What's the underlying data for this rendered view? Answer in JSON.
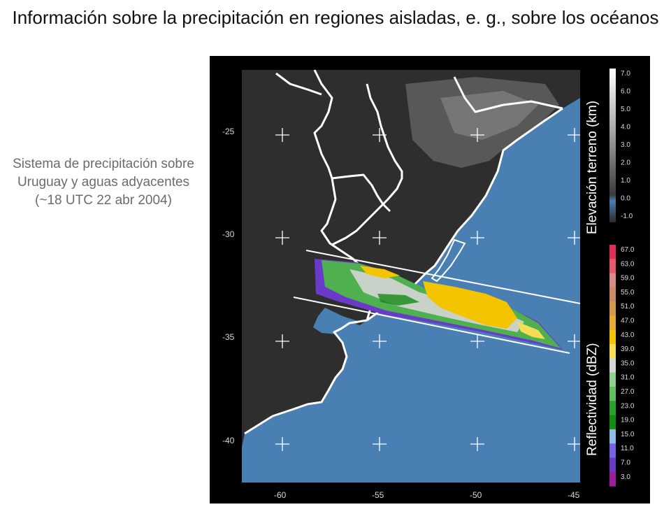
{
  "title": "Información sobre la precipitación en regiones aisladas, e. g., sobre los océanos",
  "side_caption": "Sistema de precipitación sobre Uruguay y aguas adyacentes (~18 UTC 22 abr 2004)",
  "map": {
    "lon_ticks": [
      "-60",
      "-55",
      "-50",
      "-45"
    ],
    "lat_ticks": [
      "-25",
      "-30",
      "-35",
      "-40"
    ],
    "ocean_color": "#4a7fb4",
    "land_color": "#2e2e2e",
    "border_color": "#ffffff"
  },
  "terrain_colorbar": {
    "title": "Elevación terreno (km)",
    "labels": [
      "7.0",
      "6.0",
      "5.0",
      "4.0",
      "3.0",
      "2.0",
      "1.0",
      "0.0",
      "-1.0"
    ]
  },
  "reflectivity_colorbar": {
    "title": "Reflectividad (dBZ)",
    "labels": [
      "67.0",
      "63.0",
      "59.0",
      "55.0",
      "51.0",
      "47.0",
      "43.0",
      "39.0",
      "35.0",
      "31.0",
      "27.0",
      "23.0",
      "19.0",
      "15.0",
      "11.0",
      "7.0",
      "3.0"
    ],
    "colors": [
      "#e0305a",
      "#e35a6e",
      "#d88a8a",
      "#c98a6a",
      "#d39a4e",
      "#e8aa30",
      "#f5c400",
      "#f7dc55",
      "#d6d6d6",
      "#8fd08f",
      "#5fbf5f",
      "#2ea02e",
      "#158a15",
      "#8fbde6",
      "#7a62e6",
      "#6a3bc9",
      "#9a1d9a"
    ]
  }
}
